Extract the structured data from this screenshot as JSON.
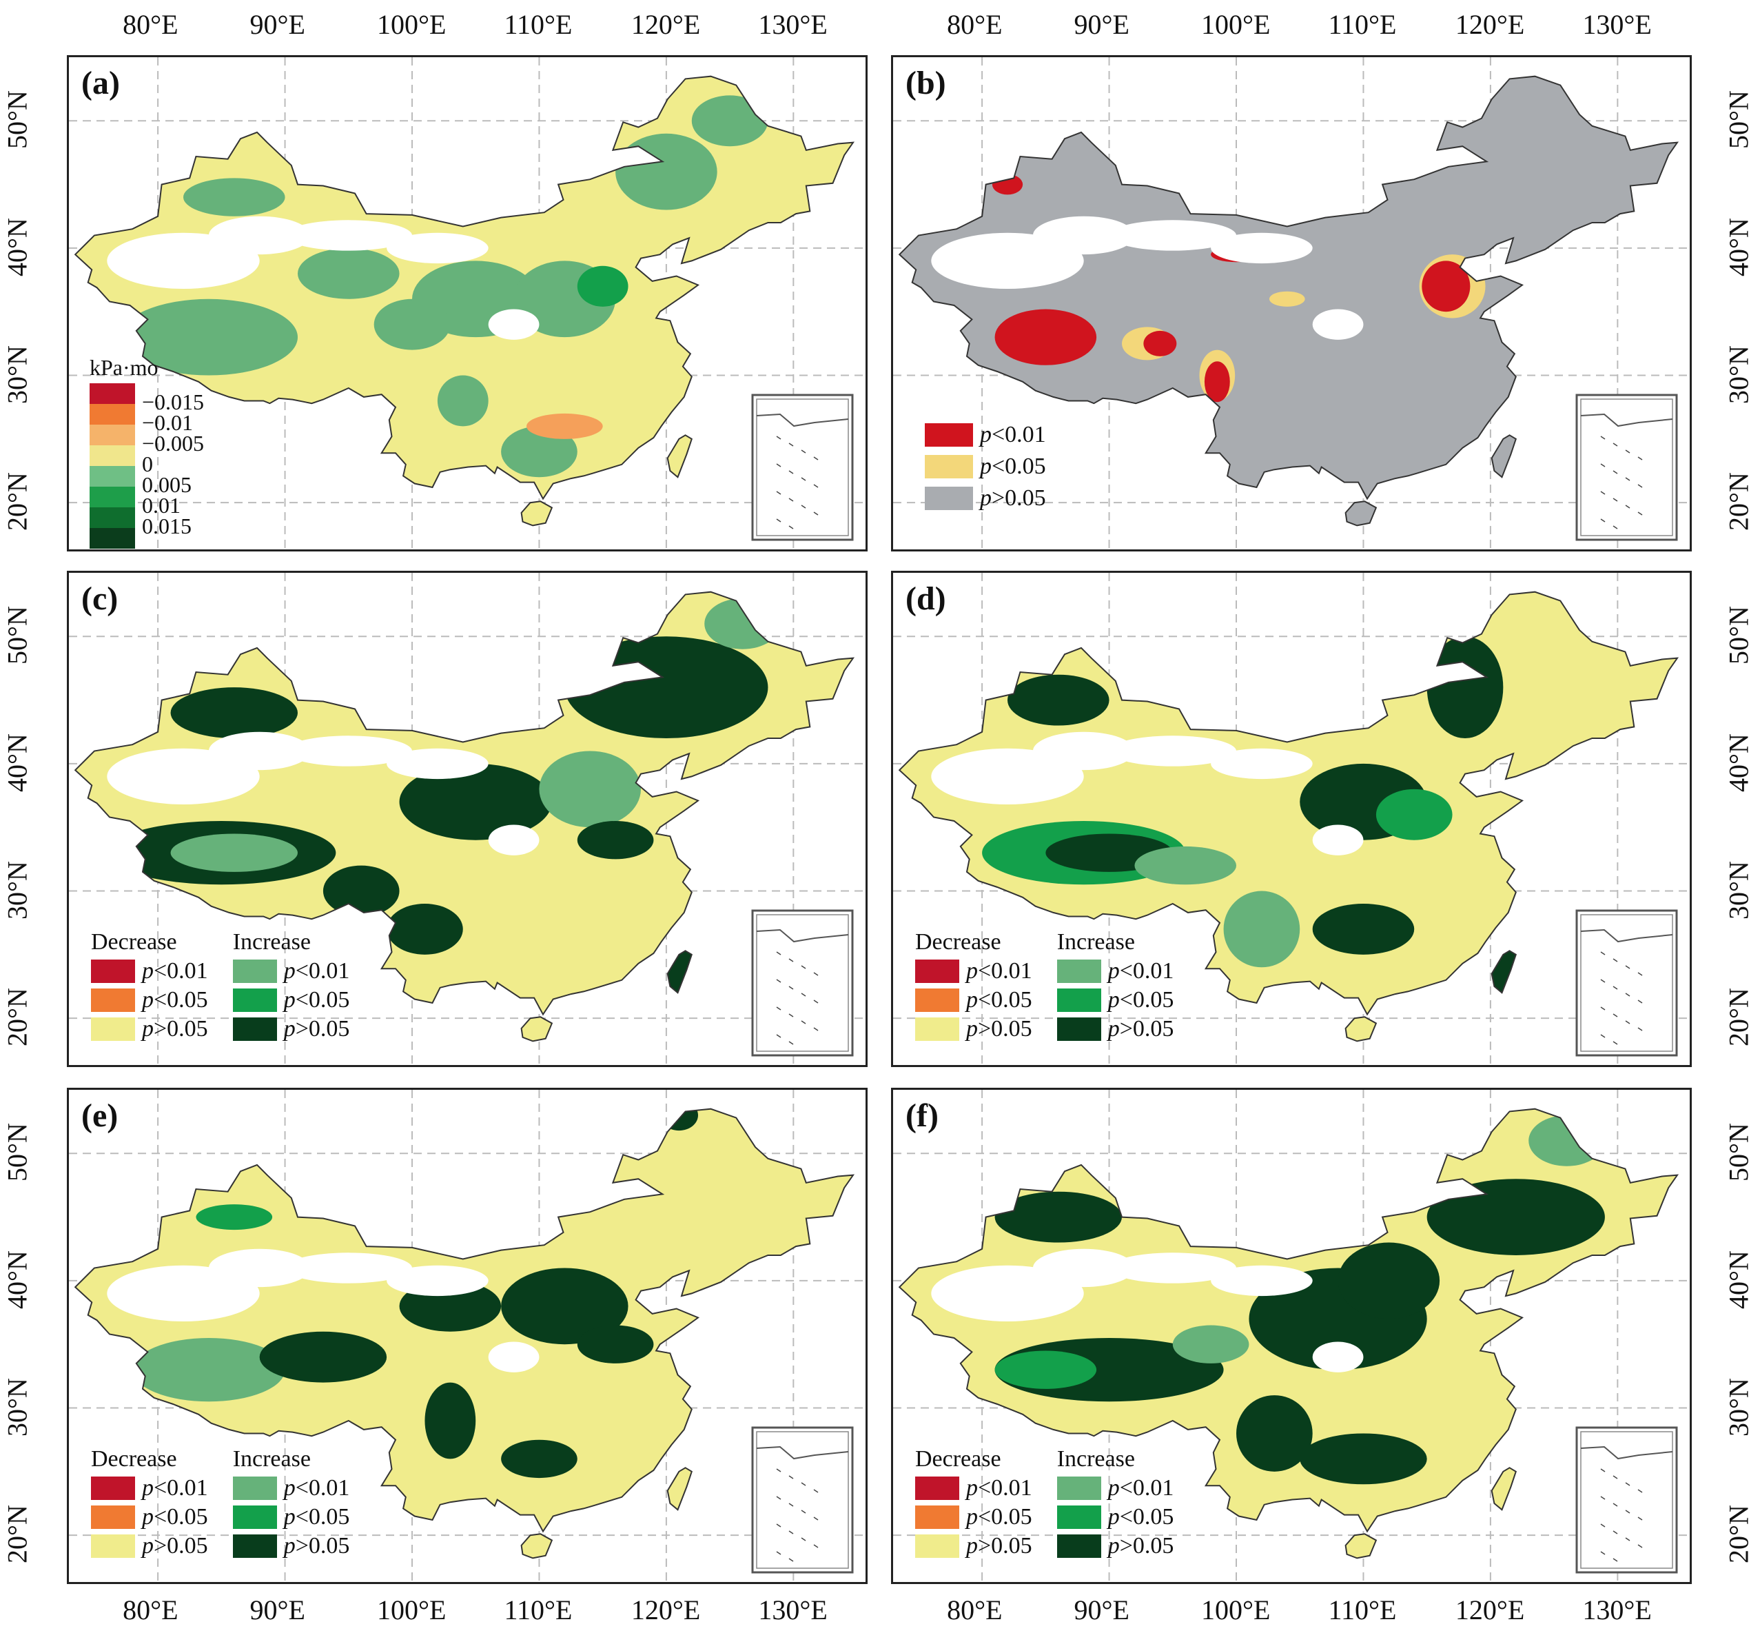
{
  "axes": {
    "lon_labels": [
      "80°E",
      "90°E",
      "100°E",
      "110°E",
      "120°E",
      "130°E"
    ],
    "lat_labels": [
      "50°N",
      "40°N",
      "30°N",
      "20°N"
    ]
  },
  "panels": [
    {
      "id": "a",
      "label": "(a)",
      "type": "continuous"
    },
    {
      "id": "b",
      "label": "(b)",
      "type": "significance"
    },
    {
      "id": "c",
      "label": "(c)",
      "type": "trend"
    },
    {
      "id": "d",
      "label": "(d)",
      "type": "trend"
    },
    {
      "id": "e",
      "label": "(e)",
      "type": "trend"
    },
    {
      "id": "f",
      "label": "(f)",
      "type": "trend"
    }
  ],
  "legend_a": {
    "unit": "kPa·mo",
    "classes": [
      {
        "label": "−0.015",
        "color": "#c0142a"
      },
      {
        "label": "−0.01",
        "color": "#f07a32"
      },
      {
        "label": "−0.005",
        "color": "#f5b36a"
      },
      {
        "label": "0",
        "color": "#f0e68c"
      },
      {
        "label": "0.005",
        "color": "#6fbf85"
      },
      {
        "label": "0.01",
        "color": "#1e9e4a"
      },
      {
        "label": "0.015",
        "color": "#0f6e2e"
      },
      {
        "label": "",
        "color": "#0b3d1c"
      }
    ]
  },
  "legend_b": [
    {
      "p": "p",
      "rest": "<0.01",
      "color": "#d0141e"
    },
    {
      "p": "p",
      "rest": "<0.05",
      "color": "#f3d77a"
    },
    {
      "p": "p",
      "rest": ">0.05",
      "color": "#a9acb0"
    }
  ],
  "legend_trend": {
    "decrease_title": "Decrease",
    "increase_title": "Increase",
    "decrease": [
      {
        "p": "p",
        "rest": "<0.01",
        "color": "#c0142a"
      },
      {
        "p": "p",
        "rest": "<0.05",
        "color": "#f07a32"
      },
      {
        "p": "p",
        "rest": ">0.05",
        "color": "#f0ec8c"
      }
    ],
    "increase": [
      {
        "p": "p",
        "rest": "<0.01",
        "color": "#66b27a"
      },
      {
        "p": "p",
        "rest": "<0.05",
        "color": "#13a04b"
      },
      {
        "p": "p",
        "rest": ">0.05",
        "color": "#083d1c"
      }
    ]
  },
  "colors": {
    "yellow": "#f0ec8c",
    "light_green": "#66b27a",
    "green": "#13a04b",
    "dark_green": "#083d1c",
    "red": "#d0141e",
    "gray": "#a9acb0",
    "gold": "#f3d77a",
    "orange": "#f5a05a"
  }
}
